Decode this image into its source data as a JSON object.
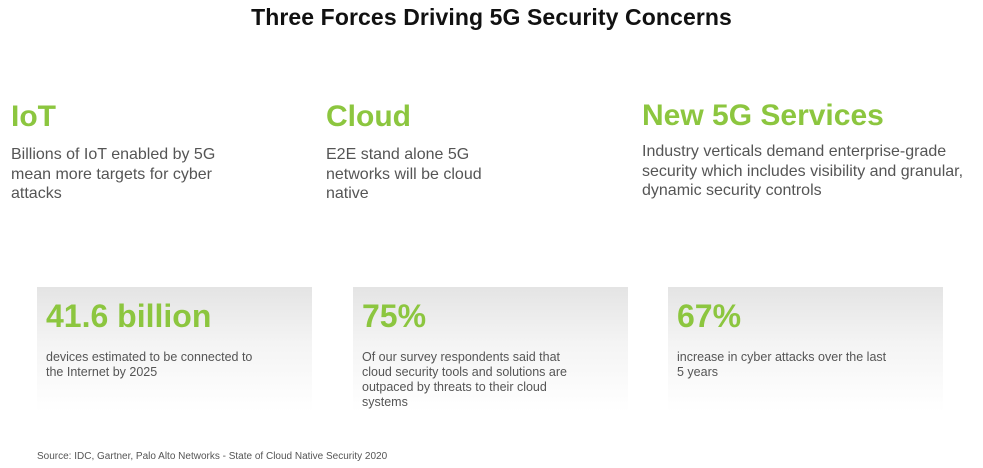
{
  "title": "Three Forces Driving 5G Security Concerns",
  "forces": [
    {
      "heading": "IoT",
      "description": "Billions of IoT enabled by 5G mean more targets for cyber attacks"
    },
    {
      "heading": "Cloud",
      "description": "E2E stand alone 5G networks will be cloud native"
    },
    {
      "heading": "New 5G Services",
      "description": "Industry verticals demand enterprise-grade security which includes visibility and granular, dynamic security controls"
    }
  ],
  "stats": [
    {
      "value": "41.6 billion",
      "text": "devices estimated to be connected to the Internet by 2025"
    },
    {
      "value": "75%",
      "text": "Of our survey respondents said that cloud security tools and solutions are outpaced by threats to their cloud systems"
    },
    {
      "value": "67%",
      "text": "increase in cyber attacks over the last 5 years"
    }
  ],
  "source": "Source: IDC, Gartner, Palo Alto Networks - State of Cloud Native Security 2020",
  "colors": {
    "accent": "#8cc63f",
    "title": "#111111",
    "body_text": "#555555",
    "card_gradient_top": "#e4e4e4"
  }
}
